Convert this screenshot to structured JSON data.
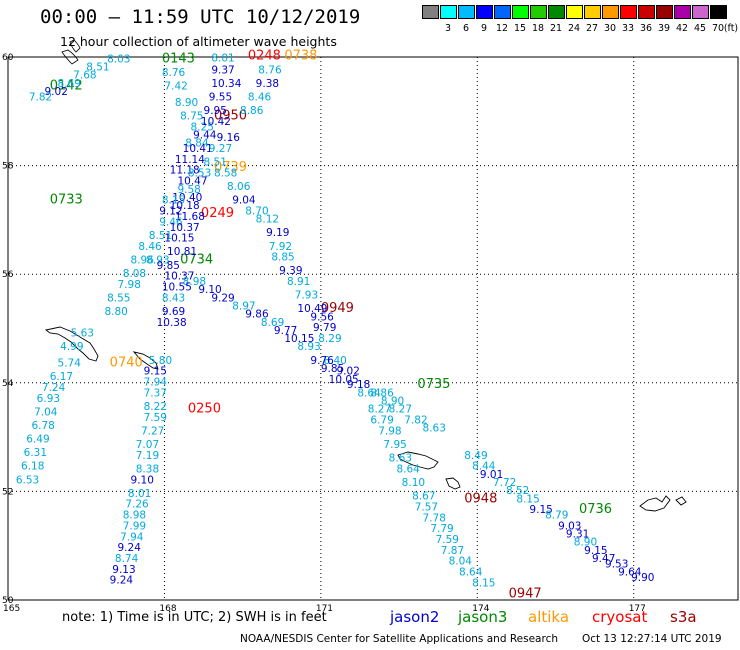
{
  "header": {
    "title": "00:00  –  11:59  UTC  10/12/2019",
    "subtitle": "12 hour collection of altimeter wave heights"
  },
  "color_scale": {
    "unit": "(ft)",
    "entries": [
      {
        "label": "",
        "color": "#808080"
      },
      {
        "label": "3",
        "color": "#00ffff"
      },
      {
        "label": "6",
        "color": "#00bbff"
      },
      {
        "label": "9",
        "color": "#0000ff"
      },
      {
        "label": "12",
        "color": "#0066ff"
      },
      {
        "label": "15",
        "color": "#00ff00"
      },
      {
        "label": "18",
        "color": "#22cc00"
      },
      {
        "label": "21",
        "color": "#008800"
      },
      {
        "label": "24",
        "color": "#ffff00"
      },
      {
        "label": "27",
        "color": "#ffcc00"
      },
      {
        "label": "30",
        "color": "#ff9900"
      },
      {
        "label": "33",
        "color": "#ff0000"
      },
      {
        "label": "36",
        "color": "#cc0000"
      },
      {
        "label": "39",
        "color": "#990000"
      },
      {
        "label": "42",
        "color": "#aa00aa"
      },
      {
        "label": "45",
        "color": "#cc66cc"
      },
      {
        "label": "70",
        "color": "#000000"
      }
    ]
  },
  "axes": {
    "lon_ticks": [
      "165",
      "168",
      "171",
      "174",
      "177"
    ],
    "lat_ticks": [
      "60",
      "58",
      "56",
      "54",
      "52",
      "50"
    ]
  },
  "colors": {
    "jason2": "#0000cc",
    "jason3": "#008800",
    "altika": "#ff9900",
    "cryosat": "#ff0000",
    "s3a": "#990000",
    "light_blue": "#00aadd"
  },
  "pass_labels": [
    {
      "text": "0143",
      "lon": 167.95,
      "lat": 59.9,
      "color": "#008800"
    },
    {
      "text": "0142",
      "lon": 165.8,
      "lat": 59.4,
      "color": "#008800"
    },
    {
      "text": "0248",
      "lon": 169.6,
      "lat": 59.95,
      "color": "#ff0000"
    },
    {
      "text": "0738",
      "lon": 170.3,
      "lat": 59.95,
      "color": "#ff9900"
    },
    {
      "text": "0950",
      "lon": 168.95,
      "lat": 58.85,
      "color": "#990000"
    },
    {
      "text": "0739",
      "lon": 168.95,
      "lat": 57.9,
      "color": "#ff9900"
    },
    {
      "text": "0733",
      "lon": 165.8,
      "lat": 57.3,
      "color": "#008800"
    },
    {
      "text": "0249",
      "lon": 168.7,
      "lat": 57.05,
      "color": "#ff0000"
    },
    {
      "text": "0734",
      "lon": 168.3,
      "lat": 56.2,
      "color": "#008800"
    },
    {
      "text": "0949",
      "lon": 171.0,
      "lat": 55.3,
      "color": "#990000"
    },
    {
      "text": "0740",
      "lon": 166.95,
      "lat": 54.3,
      "color": "#ff9900"
    },
    {
      "text": "0735",
      "lon": 172.85,
      "lat": 53.9,
      "color": "#008800"
    },
    {
      "text": "0250",
      "lon": 168.45,
      "lat": 53.45,
      "color": "#ff0000"
    },
    {
      "text": "0948",
      "lon": 173.75,
      "lat": 51.8,
      "color": "#990000"
    },
    {
      "text": "0736",
      "lon": 175.95,
      "lat": 51.6,
      "color": "#008800"
    },
    {
      "text": "0947",
      "lon": 174.6,
      "lat": 50.05,
      "color": "#990000"
    }
  ],
  "wave_heights": [
    {
      "text": "8.03",
      "lon": 166.9,
      "lat": 59.9,
      "color": "#00aadd"
    },
    {
      "text": "8.51",
      "lon": 166.5,
      "lat": 59.75,
      "color": "#00aadd"
    },
    {
      "text": "7.68",
      "lon": 166.25,
      "lat": 59.6,
      "color": "#00aadd"
    },
    {
      "text": "8.69",
      "lon": 165.95,
      "lat": 59.45,
      "color": "#00aadd"
    },
    {
      "text": "9.02",
      "lon": 165.7,
      "lat": 59.3,
      "color": "#0000cc"
    },
    {
      "text": "7.82",
      "lon": 165.4,
      "lat": 59.2,
      "color": "#00aadd"
    },
    {
      "text": "8.01",
      "lon": 168.9,
      "lat": 59.92,
      "color": "#00aadd"
    },
    {
      "text": "8.76",
      "lon": 167.95,
      "lat": 59.65,
      "color": "#00aadd"
    },
    {
      "text": "9.37",
      "lon": 168.9,
      "lat": 59.7,
      "color": "#0000cc"
    },
    {
      "text": "8.76",
      "lon": 169.8,
      "lat": 59.7,
      "color": "#00aadd"
    },
    {
      "text": "7.42",
      "lon": 168.0,
      "lat": 59.4,
      "color": "#00aadd"
    },
    {
      "text": "10.34",
      "lon": 168.9,
      "lat": 59.45,
      "color": "#0000cc"
    },
    {
      "text": "9.38",
      "lon": 169.75,
      "lat": 59.45,
      "color": "#0000cc"
    },
    {
      "text": "8.90",
      "lon": 168.2,
      "lat": 59.1,
      "color": "#00aadd"
    },
    {
      "text": "9.55",
      "lon": 168.85,
      "lat": 59.2,
      "color": "#0000cc"
    },
    {
      "text": "8.46",
      "lon": 169.6,
      "lat": 59.2,
      "color": "#00aadd"
    },
    {
      "text": "8.75",
      "lon": 168.3,
      "lat": 58.85,
      "color": "#00aadd"
    },
    {
      "text": "9.95",
      "lon": 168.75,
      "lat": 58.95,
      "color": "#0000cc"
    },
    {
      "text": "8.86",
      "lon": 169.45,
      "lat": 58.95,
      "color": "#00aadd"
    },
    {
      "text": "8.25",
      "lon": 168.5,
      "lat": 58.65,
      "color": "#00aadd"
    },
    {
      "text": "10.42",
      "lon": 168.7,
      "lat": 58.75,
      "color": "#0000cc"
    },
    {
      "text": "9.44",
      "lon": 168.55,
      "lat": 58.5,
      "color": "#0000cc"
    },
    {
      "text": "9.16",
      "lon": 169.0,
      "lat": 58.45,
      "color": "#0000cc"
    },
    {
      "text": "8.84",
      "lon": 168.4,
      "lat": 58.35,
      "color": "#00aadd"
    },
    {
      "text": "10.41",
      "lon": 168.35,
      "lat": 58.25,
      "color": "#0000cc"
    },
    {
      "text": "9.27",
      "lon": 168.85,
      "lat": 58.25,
      "color": "#00aadd"
    },
    {
      "text": "11.14",
      "lon": 168.2,
      "lat": 58.05,
      "color": "#0000cc"
    },
    {
      "text": "8.51",
      "lon": 168.75,
      "lat": 58.0,
      "color": "#00aadd"
    },
    {
      "text": "11.18",
      "lon": 168.1,
      "lat": 57.85,
      "color": "#0000cc"
    },
    {
      "text": "8.53",
      "lon": 168.45,
      "lat": 57.8,
      "color": "#00aadd"
    },
    {
      "text": "8.58",
      "lon": 168.95,
      "lat": 57.8,
      "color": "#00aadd"
    },
    {
      "text": "10.47",
      "lon": 168.25,
      "lat": 57.65,
      "color": "#0000cc"
    },
    {
      "text": "8.06",
      "lon": 169.2,
      "lat": 57.55,
      "color": "#00aadd"
    },
    {
      "text": "9.58",
      "lon": 168.25,
      "lat": 57.5,
      "color": "#00aadd"
    },
    {
      "text": "10.40",
      "lon": 168.15,
      "lat": 57.35,
      "color": "#0000cc"
    },
    {
      "text": "9.04",
      "lon": 169.3,
      "lat": 57.3,
      "color": "#0000cc"
    },
    {
      "text": "8.15",
      "lon": 167.95,
      "lat": 57.3,
      "color": "#00aadd"
    },
    {
      "text": "10.18",
      "lon": 168.1,
      "lat": 57.2,
      "color": "#0000cc"
    },
    {
      "text": "8.70",
      "lon": 169.55,
      "lat": 57.1,
      "color": "#00aadd"
    },
    {
      "text": "9.12",
      "lon": 167.9,
      "lat": 57.1,
      "color": "#0000cc"
    },
    {
      "text": "11.68",
      "lon": 168.2,
      "lat": 57.0,
      "color": "#0000cc"
    },
    {
      "text": "8.12",
      "lon": 169.75,
      "lat": 56.95,
      "color": "#00aadd"
    },
    {
      "text": "9.46",
      "lon": 167.9,
      "lat": 56.9,
      "color": "#00aadd"
    },
    {
      "text": "10.37",
      "lon": 168.1,
      "lat": 56.8,
      "color": "#0000cc"
    },
    {
      "text": "9.19",
      "lon": 169.95,
      "lat": 56.7,
      "color": "#0000cc"
    },
    {
      "text": "8.51",
      "lon": 167.7,
      "lat": 56.65,
      "color": "#00aadd"
    },
    {
      "text": "10.15",
      "lon": 168.0,
      "lat": 56.6,
      "color": "#0000cc"
    },
    {
      "text": "7.92",
      "lon": 170.0,
      "lat": 56.45,
      "color": "#00aadd"
    },
    {
      "text": "8.46",
      "lon": 167.5,
      "lat": 56.45,
      "color": "#00aadd"
    },
    {
      "text": "10.81",
      "lon": 168.05,
      "lat": 56.35,
      "color": "#0000cc"
    },
    {
      "text": "8.85",
      "lon": 170.05,
      "lat": 56.25,
      "color": "#00aadd"
    },
    {
      "text": "8.96",
      "lon": 167.35,
      "lat": 56.2,
      "color": "#00aadd"
    },
    {
      "text": "8.93",
      "lon": 167.65,
      "lat": 56.2,
      "color": "#00aadd"
    },
    {
      "text": "9.85",
      "lon": 167.85,
      "lat": 56.1,
      "color": "#0000cc"
    },
    {
      "text": "9.39",
      "lon": 170.2,
      "lat": 56.0,
      "color": "#0000cc"
    },
    {
      "text": "8.08",
      "lon": 167.2,
      "lat": 55.95,
      "color": "#00aadd"
    },
    {
      "text": "10.37",
      "lon": 168.0,
      "lat": 55.9,
      "color": "#0000cc"
    },
    {
      "text": "8.91",
      "lon": 170.35,
      "lat": 55.8,
      "color": "#00aadd"
    },
    {
      "text": "7.98",
      "lon": 167.1,
      "lat": 55.75,
      "color": "#00aadd"
    },
    {
      "text": "8.98",
      "lon": 168.35,
      "lat": 55.8,
      "color": "#00aadd"
    },
    {
      "text": "10.55",
      "lon": 167.95,
      "lat": 55.7,
      "color": "#0000cc"
    },
    {
      "text": "9.10",
      "lon": 168.65,
      "lat": 55.65,
      "color": "#0000cc"
    },
    {
      "text": "7.93",
      "lon": 170.5,
      "lat": 55.55,
      "color": "#00aadd"
    },
    {
      "text": "8.55",
      "lon": 166.9,
      "lat": 55.5,
      "color": "#00aadd"
    },
    {
      "text": "8.43",
      "lon": 167.95,
      "lat": 55.5,
      "color": "#00aadd"
    },
    {
      "text": "9.29",
      "lon": 168.9,
      "lat": 55.5,
      "color": "#0000cc"
    },
    {
      "text": "10.49",
      "lon": 170.55,
      "lat": 55.3,
      "color": "#0000cc"
    },
    {
      "text": "8.97",
      "lon": 169.3,
      "lat": 55.35,
      "color": "#00aadd"
    },
    {
      "text": "8.80",
      "lon": 166.85,
      "lat": 55.25,
      "color": "#00aadd"
    },
    {
      "text": "9.69",
      "lon": 167.95,
      "lat": 55.25,
      "color": "#0000cc"
    },
    {
      "text": "9.86",
      "lon": 169.55,
      "lat": 55.2,
      "color": "#0000cc"
    },
    {
      "text": "9.56",
      "lon": 170.8,
      "lat": 55.15,
      "color": "#0000cc"
    },
    {
      "text": "10.38",
      "lon": 167.85,
      "lat": 55.05,
      "color": "#0000cc"
    },
    {
      "text": "8.69",
      "lon": 169.85,
      "lat": 55.05,
      "color": "#00aadd"
    },
    {
      "text": "9.79",
      "lon": 170.85,
      "lat": 54.95,
      "color": "#0000cc"
    },
    {
      "text": "5.63",
      "lon": 166.2,
      "lat": 54.85,
      "color": "#00aadd"
    },
    {
      "text": "9.77",
      "lon": 170.1,
      "lat": 54.9,
      "color": "#0000cc"
    },
    {
      "text": "10.15",
      "lon": 170.3,
      "lat": 54.75,
      "color": "#0000cc"
    },
    {
      "text": "8.29",
      "lon": 170.95,
      "lat": 54.75,
      "color": "#00aadd"
    },
    {
      "text": "4.99",
      "lon": 166.0,
      "lat": 54.6,
      "color": "#00aadd"
    },
    {
      "text": "8.93",
      "lon": 170.55,
      "lat": 54.6,
      "color": "#00aadd"
    },
    {
      "text": "5.80",
      "lon": 167.7,
      "lat": 54.35,
      "color": "#00aadd"
    },
    {
      "text": "8.40",
      "lon": 171.05,
      "lat": 54.35,
      "color": "#00aadd"
    },
    {
      "text": "5.74",
      "lon": 165.95,
      "lat": 54.3,
      "color": "#00aadd"
    },
    {
      "text": "9.76",
      "lon": 170.8,
      "lat": 54.35,
      "color": "#0000cc"
    },
    {
      "text": "9.15",
      "lon": 167.6,
      "lat": 54.15,
      "color": "#0000cc"
    },
    {
      "text": "9.85",
      "lon": 171.0,
      "lat": 54.2,
      "color": "#0000cc"
    },
    {
      "text": "9.02",
      "lon": 171.3,
      "lat": 54.15,
      "color": "#0000cc"
    },
    {
      "text": "6.17",
      "lon": 165.8,
      "lat": 54.05,
      "color": "#00aadd"
    },
    {
      "text": "10.05",
      "lon": 171.15,
      "lat": 54.0,
      "color": "#0000cc"
    },
    {
      "text": "7.94",
      "lon": 167.6,
      "lat": 53.95,
      "color": "#00aadd"
    },
    {
      "text": "9.18",
      "lon": 171.5,
      "lat": 53.9,
      "color": "#0000cc"
    },
    {
      "text": "7.24",
      "lon": 165.65,
      "lat": 53.85,
      "color": "#00aadd"
    },
    {
      "text": "7.37",
      "lon": 167.6,
      "lat": 53.75,
      "color": "#00aadd"
    },
    {
      "text": "8.64",
      "lon": 171.7,
      "lat": 53.75,
      "color": "#00aadd"
    },
    {
      "text": "8.86",
      "lon": 171.95,
      "lat": 53.75,
      "color": "#00aadd"
    },
    {
      "text": "6.93",
      "lon": 165.55,
      "lat": 53.65,
      "color": "#00aadd"
    },
    {
      "text": "8.22",
      "lon": 167.6,
      "lat": 53.5,
      "color": "#00aadd"
    },
    {
      "text": "8.90",
      "lon": 172.15,
      "lat": 53.6,
      "color": "#00aadd"
    },
    {
      "text": "8.27",
      "lon": 171.9,
      "lat": 53.45,
      "color": "#00aadd"
    },
    {
      "text": "8.27",
      "lon": 172.3,
      "lat": 53.45,
      "color": "#00aadd"
    },
    {
      "text": "7.04",
      "lon": 165.5,
      "lat": 53.4,
      "color": "#00aadd"
    },
    {
      "text": "7.59",
      "lon": 167.6,
      "lat": 53.3,
      "color": "#00aadd"
    },
    {
      "text": "6.79",
      "lon": 171.95,
      "lat": 53.25,
      "color": "#00aadd"
    },
    {
      "text": "7.82",
      "lon": 172.6,
      "lat": 53.25,
      "color": "#00aadd"
    },
    {
      "text": "6.78",
      "lon": 165.45,
      "lat": 53.15,
      "color": "#00aadd"
    },
    {
      "text": "7.27",
      "lon": 167.55,
      "lat": 53.05,
      "color": "#00aadd"
    },
    {
      "text": "7.98",
      "lon": 172.1,
      "lat": 53.05,
      "color": "#00aadd"
    },
    {
      "text": "8.63",
      "lon": 172.95,
      "lat": 53.1,
      "color": "#00aadd"
    },
    {
      "text": "6.49",
      "lon": 165.35,
      "lat": 52.9,
      "color": "#00aadd"
    },
    {
      "text": "7.07",
      "lon": 167.45,
      "lat": 52.8,
      "color": "#00aadd"
    },
    {
      "text": "7.95",
      "lon": 172.2,
      "lat": 52.8,
      "color": "#00aadd"
    },
    {
      "text": "6.31",
      "lon": 165.3,
      "lat": 52.65,
      "color": "#00aadd"
    },
    {
      "text": "7.19",
      "lon": 167.45,
      "lat": 52.6,
      "color": "#00aadd"
    },
    {
      "text": "8.63",
      "lon": 172.3,
      "lat": 52.55,
      "color": "#00aadd"
    },
    {
      "text": "8.49",
      "lon": 173.75,
      "lat": 52.6,
      "color": "#00aadd"
    },
    {
      "text": "6.18",
      "lon": 165.25,
      "lat": 52.4,
      "color": "#00aadd"
    },
    {
      "text": "8.38",
      "lon": 167.45,
      "lat": 52.35,
      "color": "#00aadd"
    },
    {
      "text": "8.64",
      "lon": 172.45,
      "lat": 52.35,
      "color": "#00aadd"
    },
    {
      "text": "8.44",
      "lon": 173.9,
      "lat": 52.4,
      "color": "#00aadd"
    },
    {
      "text": "9.01",
      "lon": 174.05,
      "lat": 52.25,
      "color": "#0000cc"
    },
    {
      "text": "6.53",
      "lon": 165.15,
      "lat": 52.15,
      "color": "#00aadd"
    },
    {
      "text": "9.10",
      "lon": 167.35,
      "lat": 52.15,
      "color": "#0000cc"
    },
    {
      "text": "8.10",
      "lon": 172.55,
      "lat": 52.1,
      "color": "#00aadd"
    },
    {
      "text": "7.72",
      "lon": 174.3,
      "lat": 52.1,
      "color": "#00aadd"
    },
    {
      "text": "8.01",
      "lon": 167.3,
      "lat": 51.9,
      "color": "#00aadd"
    },
    {
      "text": "8.67",
      "lon": 172.75,
      "lat": 51.85,
      "color": "#00aadd"
    },
    {
      "text": "8.52",
      "lon": 174.55,
      "lat": 51.95,
      "color": "#00aadd"
    },
    {
      "text": "7.26",
      "lon": 167.25,
      "lat": 51.7,
      "color": "#00aadd"
    },
    {
      "text": "7.57",
      "lon": 172.8,
      "lat": 51.65,
      "color": "#00aadd"
    },
    {
      "text": "8.15",
      "lon": 174.75,
      "lat": 51.8,
      "color": "#00aadd"
    },
    {
      "text": "9.15",
      "lon": 175.0,
      "lat": 51.6,
      "color": "#0000cc"
    },
    {
      "text": "8.98",
      "lon": 167.2,
      "lat": 51.5,
      "color": "#00aadd"
    },
    {
      "text": "7.78",
      "lon": 172.95,
      "lat": 51.45,
      "color": "#00aadd"
    },
    {
      "text": "8.79",
      "lon": 175.3,
      "lat": 51.5,
      "color": "#00aadd"
    },
    {
      "text": "7.99",
      "lon": 167.2,
      "lat": 51.3,
      "color": "#00aadd"
    },
    {
      "text": "7.79",
      "lon": 173.1,
      "lat": 51.25,
      "color": "#00aadd"
    },
    {
      "text": "9.03",
      "lon": 175.55,
      "lat": 51.3,
      "color": "#0000cc"
    },
    {
      "text": "7.94",
      "lon": 167.15,
      "lat": 51.1,
      "color": "#00aadd"
    },
    {
      "text": "7.59",
      "lon": 173.2,
      "lat": 51.05,
      "color": "#00aadd"
    },
    {
      "text": "9.31",
      "lon": 175.7,
      "lat": 51.15,
      "color": "#0000cc"
    },
    {
      "text": "8.90",
      "lon": 175.85,
      "lat": 51.0,
      "color": "#00aadd"
    },
    {
      "text": "9.24",
      "lon": 167.1,
      "lat": 50.9,
      "color": "#0000cc"
    },
    {
      "text": "7.87",
      "lon": 173.3,
      "lat": 50.85,
      "color": "#00aadd"
    },
    {
      "text": "9.15",
      "lon": 176.05,
      "lat": 50.85,
      "color": "#0000cc"
    },
    {
      "text": "8.74",
      "lon": 167.05,
      "lat": 50.7,
      "color": "#00aadd"
    },
    {
      "text": "8.04",
      "lon": 173.45,
      "lat": 50.65,
      "color": "#00aadd"
    },
    {
      "text": "9.47",
      "lon": 176.2,
      "lat": 50.7,
      "color": "#0000cc"
    },
    {
      "text": "9.53",
      "lon": 176.45,
      "lat": 50.6,
      "color": "#0000cc"
    },
    {
      "text": "9.13",
      "lon": 167.0,
      "lat": 50.5,
      "color": "#0000cc"
    },
    {
      "text": "8.64",
      "lon": 173.65,
      "lat": 50.45,
      "color": "#00aadd"
    },
    {
      "text": "9.64",
      "lon": 176.7,
      "lat": 50.45,
      "color": "#0000cc"
    },
    {
      "text": "9.90",
      "lon": 176.95,
      "lat": 50.35,
      "color": "#0000cc"
    },
    {
      "text": "9.24",
      "lon": 166.95,
      "lat": 50.3,
      "color": "#0000cc"
    },
    {
      "text": "8.15",
      "lon": 173.9,
      "lat": 50.25,
      "color": "#00aadd"
    }
  ],
  "footer": {
    "note": "note:  1) Time is in UTC;  2) SWH is in feet",
    "missions": [
      {
        "name": "jason2",
        "color": "#0000cc"
      },
      {
        "name": "jason3",
        "color": "#008800"
      },
      {
        "name": "altika",
        "color": "#ff9900"
      },
      {
        "name": "cryosat",
        "color": "#ff0000"
      },
      {
        "name": "s3a",
        "color": "#990000"
      }
    ],
    "credit": "NOAA/NESDIS Center for Satellite Applications and Research",
    "timestamp": "Oct 13 12:27:14 UTC 2019"
  }
}
